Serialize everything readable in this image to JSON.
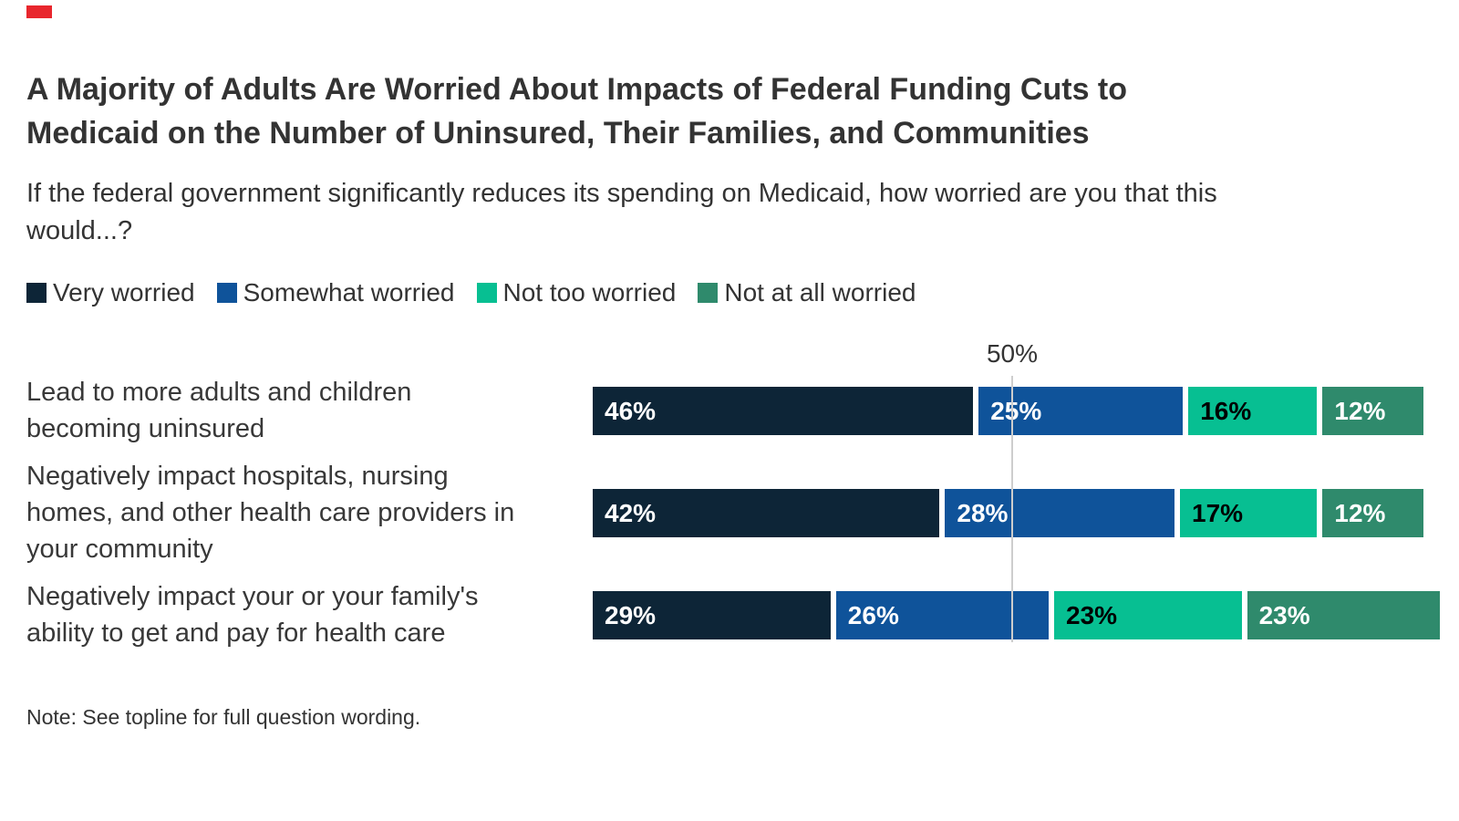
{
  "brand": {
    "mark_color": "#e8262d"
  },
  "header": {
    "title": "A Majority of Adults Are Worried About Impacts of Federal Funding Cuts to\nMedicaid on the Number of Uninsured, Their Families, and Communities",
    "subtitle": "If the federal government significantly reduces its spending on Medicaid, how worried are you that this\nwould...?"
  },
  "legend": {
    "items": [
      {
        "label": "Very worried",
        "color": "#0d2537"
      },
      {
        "label": "Somewhat worried",
        "color": "#0f539a"
      },
      {
        "label": "Not too worried",
        "color": "#07bf92"
      },
      {
        "label": "Not at all worried",
        "color": "#2f8a6c"
      }
    ]
  },
  "chart_data": {
    "type": "bar",
    "orientation": "horizontal",
    "stacked": true,
    "categories": [
      "Lead to more adults and children\nbecoming uninsured",
      "Negatively impact hospitals, nursing\nhomes, and other health care providers in\nyour community",
      "Negatively impact your or your family's\nability to get and pay for health care"
    ],
    "series": [
      {
        "name": "Very worried",
        "color": "#0d2537",
        "label_color": "#ffffff",
        "values": [
          46,
          42,
          29
        ]
      },
      {
        "name": "Somewhat worried",
        "color": "#0f539a",
        "label_color": "#ffffff",
        "values": [
          25,
          28,
          26
        ]
      },
      {
        "name": "Not too worried",
        "color": "#07bf92",
        "label_color": "#000000",
        "values": [
          16,
          17,
          23
        ]
      },
      {
        "name": "Not at all worried",
        "color": "#2f8a6c",
        "label_color": "#ffffff",
        "values": [
          12,
          12,
          23
        ]
      }
    ],
    "value_suffix": "%",
    "axis": {
      "xmax": 100,
      "gridline_value": 50,
      "gridline_label": "50%",
      "grid": "single-line",
      "legend_position": "top"
    }
  },
  "note": {
    "text": "Note: See topline for full question wording."
  }
}
